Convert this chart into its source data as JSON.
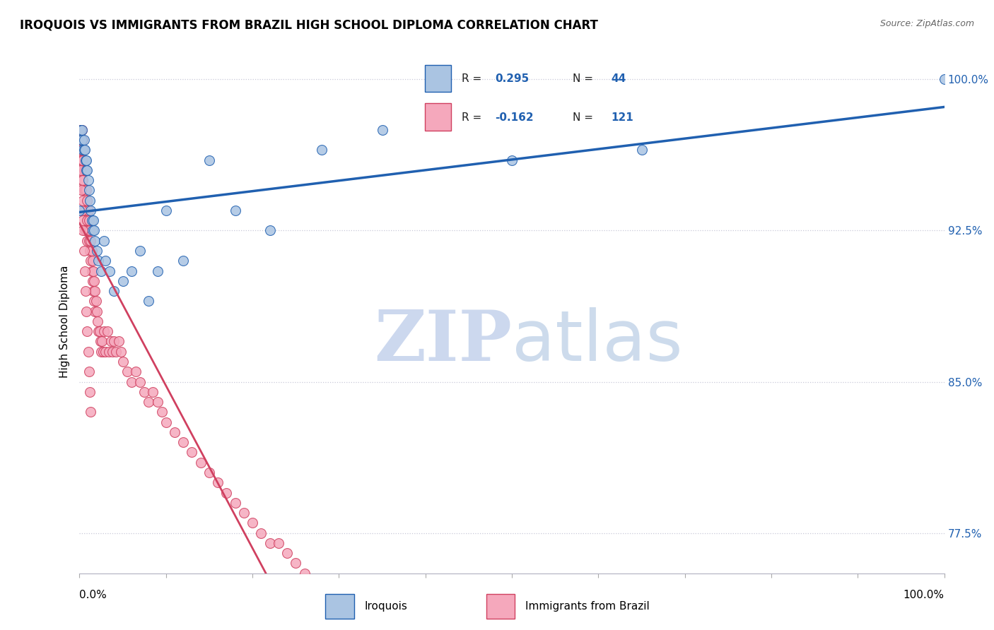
{
  "title": "IROQUOIS VS IMMIGRANTS FROM BRAZIL HIGH SCHOOL DIPLOMA CORRELATION CHART",
  "source": "Source: ZipAtlas.com",
  "ylabel": "High School Diploma",
  "ytick_labels": [
    "77.5%",
    "85.0%",
    "92.5%",
    "100.0%"
  ],
  "ytick_values": [
    0.775,
    0.85,
    0.925,
    1.0
  ],
  "color_iroquois": "#aac4e2",
  "color_brazil": "#f5a8bc",
  "color_line_iroquois": "#2060b0",
  "color_line_brazil": "#d04060",
  "color_line_brazil_dashed": "#d8b0bc",
  "iroquois_x": [
    0.0,
    0.001,
    0.002,
    0.003,
    0.003,
    0.004,
    0.005,
    0.005,
    0.006,
    0.007,
    0.008,
    0.008,
    0.009,
    0.01,
    0.011,
    0.012,
    0.013,
    0.014,
    0.015,
    0.016,
    0.017,
    0.018,
    0.02,
    0.022,
    0.025,
    0.028,
    0.03,
    0.035,
    0.04,
    0.05,
    0.06,
    0.07,
    0.08,
    0.09,
    0.1,
    0.12,
    0.15,
    0.18,
    0.22,
    0.28,
    0.35,
    0.5,
    0.65,
    1.0
  ],
  "iroquois_y": [
    0.935,
    0.975,
    0.97,
    0.975,
    0.97,
    0.965,
    0.965,
    0.97,
    0.965,
    0.96,
    0.96,
    0.955,
    0.955,
    0.95,
    0.945,
    0.94,
    0.935,
    0.93,
    0.925,
    0.93,
    0.925,
    0.92,
    0.915,
    0.91,
    0.905,
    0.92,
    0.91,
    0.905,
    0.895,
    0.9,
    0.905,
    0.915,
    0.89,
    0.905,
    0.935,
    0.91,
    0.96,
    0.935,
    0.925,
    0.965,
    0.975,
    0.96,
    0.965,
    1.0
  ],
  "brazil_x": [
    0.0,
    0.0,
    0.001,
    0.001,
    0.001,
    0.001,
    0.001,
    0.002,
    0.002,
    0.002,
    0.002,
    0.002,
    0.002,
    0.003,
    0.003,
    0.003,
    0.003,
    0.003,
    0.003,
    0.004,
    0.004,
    0.004,
    0.004,
    0.004,
    0.005,
    0.005,
    0.005,
    0.005,
    0.006,
    0.006,
    0.006,
    0.006,
    0.007,
    0.007,
    0.007,
    0.007,
    0.008,
    0.008,
    0.008,
    0.009,
    0.009,
    0.009,
    0.01,
    0.01,
    0.011,
    0.011,
    0.012,
    0.012,
    0.013,
    0.013,
    0.014,
    0.014,
    0.015,
    0.015,
    0.016,
    0.016,
    0.017,
    0.017,
    0.018,
    0.018,
    0.019,
    0.02,
    0.021,
    0.022,
    0.023,
    0.024,
    0.025,
    0.026,
    0.027,
    0.028,
    0.03,
    0.032,
    0.034,
    0.036,
    0.038,
    0.04,
    0.042,
    0.045,
    0.048,
    0.05,
    0.055,
    0.06,
    0.065,
    0.07,
    0.075,
    0.08,
    0.085,
    0.09,
    0.095,
    0.1,
    0.11,
    0.12,
    0.13,
    0.14,
    0.15,
    0.16,
    0.17,
    0.18,
    0.19,
    0.2,
    0.21,
    0.22,
    0.23,
    0.24,
    0.25,
    0.26,
    0.0,
    0.001,
    0.001,
    0.002,
    0.003,
    0.004,
    0.005,
    0.006,
    0.007,
    0.008,
    0.009,
    0.01,
    0.011,
    0.012,
    0.013
  ],
  "brazil_y": [
    0.975,
    0.965,
    0.975,
    0.97,
    0.965,
    0.96,
    0.975,
    0.975,
    0.97,
    0.965,
    0.96,
    0.955,
    0.95,
    0.975,
    0.965,
    0.955,
    0.945,
    0.96,
    0.955,
    0.97,
    0.96,
    0.95,
    0.94,
    0.93,
    0.965,
    0.955,
    0.945,
    0.935,
    0.955,
    0.945,
    0.935,
    0.925,
    0.955,
    0.945,
    0.935,
    0.925,
    0.945,
    0.935,
    0.925,
    0.94,
    0.93,
    0.92,
    0.935,
    0.925,
    0.93,
    0.92,
    0.925,
    0.915,
    0.92,
    0.91,
    0.915,
    0.905,
    0.91,
    0.9,
    0.905,
    0.895,
    0.9,
    0.89,
    0.895,
    0.885,
    0.89,
    0.885,
    0.88,
    0.875,
    0.875,
    0.87,
    0.865,
    0.87,
    0.865,
    0.875,
    0.865,
    0.875,
    0.865,
    0.87,
    0.865,
    0.87,
    0.865,
    0.87,
    0.865,
    0.86,
    0.855,
    0.85,
    0.855,
    0.85,
    0.845,
    0.84,
    0.845,
    0.84,
    0.835,
    0.83,
    0.825,
    0.82,
    0.815,
    0.81,
    0.805,
    0.8,
    0.795,
    0.79,
    0.785,
    0.78,
    0.775,
    0.77,
    0.77,
    0.765,
    0.76,
    0.755,
    0.975,
    0.965,
    0.955,
    0.945,
    0.935,
    0.925,
    0.915,
    0.905,
    0.895,
    0.885,
    0.875,
    0.865,
    0.855,
    0.845,
    0.835
  ]
}
